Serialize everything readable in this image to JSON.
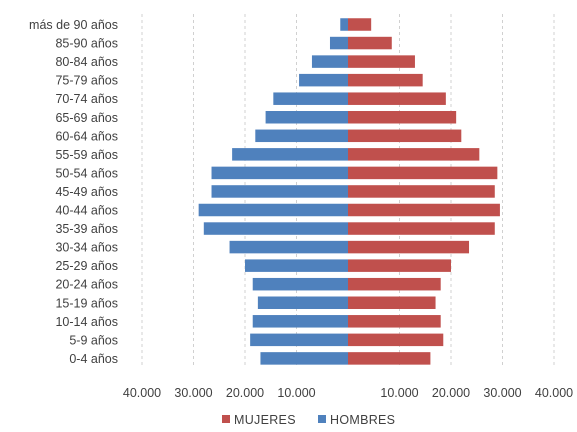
{
  "chart_data": {
    "type": "bar",
    "orientation": "horizontal",
    "categories": [
      "más de 90 años",
      "85-90 años",
      "80-84 años",
      "75-79 años",
      "70-74 años",
      "65-69 años",
      "60-64 años",
      "55-59 años",
      "50-54 años",
      "45-49 años",
      "40-44 años",
      "35-39 años",
      "30-34 años",
      "25-29 años",
      "20-24 años",
      "15-19 años",
      "10-14 años",
      "5-9 años",
      "0-4 años"
    ],
    "series": [
      {
        "name": "MUJERES",
        "color": "#c0504d",
        "side": "right",
        "values": [
          4500,
          8500,
          13000,
          14500,
          19000,
          21000,
          22000,
          25500,
          29000,
          28500,
          29500,
          28500,
          23500,
          20000,
          18000,
          17000,
          18000,
          18500,
          16000
        ]
      },
      {
        "name": "HOMBRES",
        "color": "#4f81bd",
        "side": "left",
        "values": [
          1500,
          3500,
          7000,
          9500,
          14500,
          16000,
          18000,
          22500,
          26500,
          26500,
          29000,
          28000,
          23000,
          20000,
          18500,
          17500,
          18500,
          19000,
          17000
        ]
      }
    ],
    "xlim": [
      -40000,
      40000
    ],
    "xticks_left": [
      "40.000",
      "30.000",
      "20.000",
      "10.000"
    ],
    "xticks_right": [
      "10.000",
      "20.000",
      "30.000",
      "40.000"
    ],
    "grid": "vertical dashed",
    "legend": "bottom-center",
    "legend_entries": [
      "MUJERES",
      "HOMBRES"
    ]
  }
}
